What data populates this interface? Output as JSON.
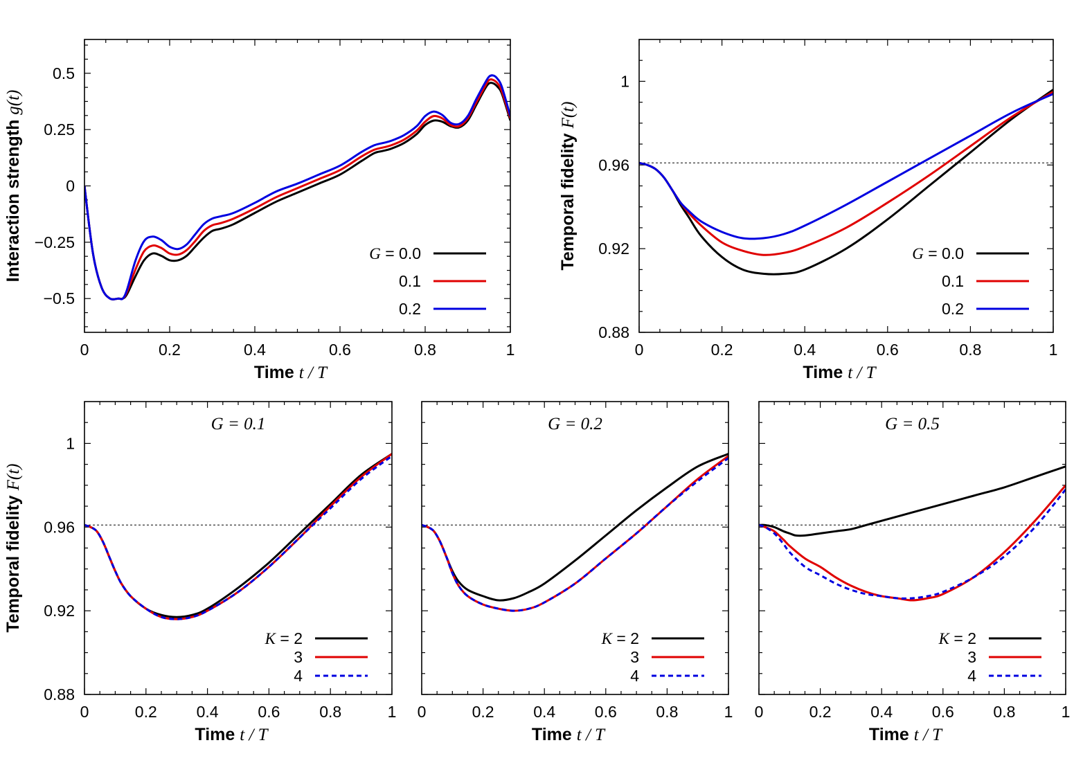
{
  "chart_data": [
    {
      "id": "panel-a",
      "type": "line",
      "xlabel": "Time",
      "xlabel_math": "t / T",
      "ylabel": "Interaction strength",
      "ylabel_math": "g(t)",
      "xlim": [
        0,
        1
      ],
      "ylim": [
        -0.65,
        0.65
      ],
      "xticks": [
        0,
        0.2,
        0.4,
        0.6,
        0.8,
        1
      ],
      "xtick_labels": [
        "0",
        "0.2",
        "0.4",
        "0.6",
        "0.8",
        "1"
      ],
      "yticks": [
        -0.5,
        -0.25,
        0,
        0.25,
        0.5
      ],
      "ytick_labels": [
        "−0.5",
        "−0.25",
        "0",
        "0.25",
        "0.5"
      ],
      "legend_placement": "bottom-right",
      "legend_title_math": "G",
      "series": [
        {
          "name": "0.0",
          "color": "#000000",
          "dash": "solid",
          "x": [
            0,
            0.02,
            0.04,
            0.06,
            0.08,
            0.09,
            0.1,
            0.12,
            0.14,
            0.16,
            0.18,
            0.2,
            0.22,
            0.24,
            0.26,
            0.28,
            0.3,
            0.32,
            0.35,
            0.4,
            0.45,
            0.5,
            0.55,
            0.6,
            0.65,
            0.68,
            0.7,
            0.72,
            0.75,
            0.78,
            0.8,
            0.82,
            0.84,
            0.86,
            0.88,
            0.9,
            0.92,
            0.94,
            0.95,
            0.96,
            0.97,
            0.98,
            1.0
          ],
          "y": [
            0.0,
            -0.3,
            -0.45,
            -0.5,
            -0.5,
            -0.5,
            -0.48,
            -0.4,
            -0.33,
            -0.3,
            -0.31,
            -0.33,
            -0.33,
            -0.31,
            -0.27,
            -0.23,
            -0.2,
            -0.19,
            -0.17,
            -0.12,
            -0.07,
            -0.03,
            0.01,
            0.05,
            0.11,
            0.145,
            0.155,
            0.165,
            0.19,
            0.23,
            0.27,
            0.29,
            0.285,
            0.265,
            0.26,
            0.29,
            0.36,
            0.43,
            0.455,
            0.455,
            0.44,
            0.41,
            0.29
          ]
        },
        {
          "name": "0.1",
          "color": "#e00000",
          "dash": "solid",
          "x": [
            0,
            0.02,
            0.04,
            0.06,
            0.08,
            0.09,
            0.1,
            0.12,
            0.14,
            0.16,
            0.18,
            0.2,
            0.22,
            0.24,
            0.26,
            0.28,
            0.3,
            0.32,
            0.35,
            0.4,
            0.45,
            0.5,
            0.55,
            0.6,
            0.65,
            0.68,
            0.7,
            0.72,
            0.75,
            0.78,
            0.8,
            0.82,
            0.84,
            0.86,
            0.88,
            0.9,
            0.92,
            0.94,
            0.95,
            0.96,
            0.97,
            0.98,
            1.0
          ],
          "y": [
            0.0,
            -0.3,
            -0.45,
            -0.5,
            -0.5,
            -0.5,
            -0.47,
            -0.37,
            -0.29,
            -0.265,
            -0.275,
            -0.3,
            -0.305,
            -0.285,
            -0.245,
            -0.2,
            -0.175,
            -0.165,
            -0.145,
            -0.1,
            -0.05,
            -0.01,
            0.03,
            0.07,
            0.13,
            0.16,
            0.17,
            0.18,
            0.205,
            0.245,
            0.285,
            0.31,
            0.3,
            0.27,
            0.265,
            0.3,
            0.37,
            0.44,
            0.47,
            0.47,
            0.455,
            0.42,
            0.3
          ]
        },
        {
          "name": "0.2",
          "color": "#0000e0",
          "dash": "solid",
          "x": [
            0,
            0.02,
            0.04,
            0.06,
            0.08,
            0.09,
            0.1,
            0.12,
            0.14,
            0.16,
            0.18,
            0.2,
            0.22,
            0.24,
            0.26,
            0.28,
            0.3,
            0.32,
            0.35,
            0.4,
            0.45,
            0.5,
            0.55,
            0.6,
            0.65,
            0.68,
            0.7,
            0.72,
            0.75,
            0.78,
            0.8,
            0.82,
            0.84,
            0.86,
            0.88,
            0.9,
            0.92,
            0.94,
            0.95,
            0.96,
            0.97,
            0.98,
            1.0
          ],
          "y": [
            0.0,
            -0.3,
            -0.45,
            -0.5,
            -0.5,
            -0.5,
            -0.46,
            -0.33,
            -0.245,
            -0.225,
            -0.24,
            -0.27,
            -0.28,
            -0.26,
            -0.215,
            -0.17,
            -0.145,
            -0.135,
            -0.12,
            -0.075,
            -0.025,
            0.01,
            0.05,
            0.09,
            0.15,
            0.18,
            0.19,
            0.2,
            0.225,
            0.265,
            0.31,
            0.33,
            0.315,
            0.28,
            0.275,
            0.31,
            0.385,
            0.455,
            0.485,
            0.49,
            0.475,
            0.44,
            0.31
          ]
        }
      ]
    },
    {
      "id": "panel-b",
      "type": "line",
      "xlabel": "Time",
      "xlabel_math": "t / T",
      "ylabel": "Temporal fidelity",
      "ylabel_math": "F(t)",
      "xlim": [
        0,
        1
      ],
      "ylim": [
        0.88,
        1.02
      ],
      "xticks": [
        0,
        0.2,
        0.4,
        0.6,
        0.8,
        1
      ],
      "xtick_labels": [
        "0",
        "0.2",
        "0.4",
        "0.6",
        "0.8",
        "1"
      ],
      "yticks": [
        0.88,
        0.92,
        0.96,
        1.0
      ],
      "ytick_labels": [
        "0.88",
        "0.92",
        "0.96",
        "1"
      ],
      "reference_line_y": 0.961,
      "legend_placement": "bottom-right",
      "legend_title_math": "G",
      "series": [
        {
          "name": "0.0",
          "color": "#000000",
          "dash": "solid",
          "x": [
            0,
            0.02,
            0.04,
            0.06,
            0.08,
            0.1,
            0.12,
            0.15,
            0.2,
            0.25,
            0.3,
            0.35,
            0.4,
            0.5,
            0.6,
            0.7,
            0.8,
            0.9,
            1.0
          ],
          "y": [
            0.961,
            0.96,
            0.958,
            0.954,
            0.948,
            0.941,
            0.935,
            0.926,
            0.916,
            0.91,
            0.908,
            0.908,
            0.91,
            0.92,
            0.934,
            0.95,
            0.966,
            0.982,
            0.996
          ]
        },
        {
          "name": "0.1",
          "color": "#e00000",
          "dash": "solid",
          "x": [
            0,
            0.02,
            0.04,
            0.06,
            0.08,
            0.1,
            0.12,
            0.15,
            0.2,
            0.25,
            0.3,
            0.35,
            0.4,
            0.5,
            0.6,
            0.7,
            0.8,
            0.9,
            1.0
          ],
          "y": [
            0.961,
            0.96,
            0.958,
            0.954,
            0.948,
            0.942,
            0.937,
            0.931,
            0.923,
            0.919,
            0.917,
            0.918,
            0.921,
            0.93,
            0.942,
            0.955,
            0.969,
            0.983,
            0.995
          ]
        },
        {
          "name": "0.2",
          "color": "#0000e0",
          "dash": "solid",
          "x": [
            0,
            0.02,
            0.04,
            0.06,
            0.08,
            0.1,
            0.12,
            0.15,
            0.2,
            0.25,
            0.3,
            0.35,
            0.4,
            0.5,
            0.6,
            0.7,
            0.8,
            0.9,
            1.0
          ],
          "y": [
            0.961,
            0.96,
            0.958,
            0.954,
            0.948,
            0.942,
            0.938,
            0.933,
            0.928,
            0.925,
            0.925,
            0.927,
            0.931,
            0.941,
            0.952,
            0.963,
            0.974,
            0.985,
            0.994
          ]
        }
      ]
    },
    {
      "id": "panel-c",
      "type": "line",
      "title": "G = 0.1",
      "xlabel": "Time",
      "xlabel_math": "t / T",
      "ylabel": "Temporal fidelity",
      "ylabel_math": "F(t)",
      "xlim": [
        0,
        1
      ],
      "ylim": [
        0.88,
        1.02
      ],
      "xticks": [
        0,
        0.2,
        0.4,
        0.6,
        0.8,
        1
      ],
      "xtick_labels": [
        "0",
        "0.2",
        "0.4",
        "0.6",
        "0.8",
        "1"
      ],
      "yticks": [
        0.88,
        0.92,
        0.96,
        1.0
      ],
      "ytick_labels": [
        "0.88",
        "0.92",
        "0.96",
        "1"
      ],
      "reference_line_y": 0.961,
      "legend_placement": "bottom-right",
      "legend_title_math": "K",
      "series": [
        {
          "name": "2",
          "color": "#000000",
          "dash": "solid",
          "x": [
            0,
            0.02,
            0.04,
            0.06,
            0.08,
            0.1,
            0.12,
            0.15,
            0.2,
            0.25,
            0.3,
            0.35,
            0.4,
            0.5,
            0.6,
            0.7,
            0.8,
            0.9,
            1.0
          ],
          "y": [
            0.961,
            0.96,
            0.958,
            0.953,
            0.946,
            0.939,
            0.933,
            0.927,
            0.921,
            0.918,
            0.917,
            0.918,
            0.921,
            0.931,
            0.943,
            0.957,
            0.971,
            0.985,
            0.995
          ]
        },
        {
          "name": "3",
          "color": "#e00000",
          "dash": "solid",
          "x": [
            0,
            0.02,
            0.04,
            0.06,
            0.08,
            0.1,
            0.12,
            0.15,
            0.2,
            0.25,
            0.3,
            0.35,
            0.4,
            0.5,
            0.6,
            0.7,
            0.8,
            0.9,
            1.0
          ],
          "y": [
            0.961,
            0.96,
            0.958,
            0.953,
            0.946,
            0.939,
            0.933,
            0.927,
            0.921,
            0.917,
            0.916,
            0.917,
            0.92,
            0.929,
            0.941,
            0.955,
            0.97,
            0.984,
            0.995
          ]
        },
        {
          "name": "4",
          "color": "#0000e0",
          "dash": "dashed",
          "x": [
            0,
            0.02,
            0.04,
            0.06,
            0.08,
            0.1,
            0.12,
            0.15,
            0.2,
            0.25,
            0.3,
            0.35,
            0.4,
            0.5,
            0.6,
            0.7,
            0.8,
            0.9,
            1.0
          ],
          "y": [
            0.961,
            0.96,
            0.958,
            0.953,
            0.946,
            0.939,
            0.933,
            0.927,
            0.921,
            0.917,
            0.916,
            0.917,
            0.92,
            0.929,
            0.941,
            0.955,
            0.969,
            0.983,
            0.994
          ]
        }
      ]
    },
    {
      "id": "panel-d",
      "type": "line",
      "title": "G = 0.2",
      "xlabel": "Time",
      "xlabel_math": "t / T",
      "ylabel": "",
      "xlim": [
        0,
        1
      ],
      "ylim": [
        0.88,
        1.02
      ],
      "xticks": [
        0,
        0.2,
        0.4,
        0.6,
        0.8,
        1
      ],
      "xtick_labels": [
        "0",
        "0.2",
        "0.4",
        "0.6",
        "0.8",
        "1"
      ],
      "yticks": [
        0.88,
        0.92,
        0.96,
        1.0
      ],
      "ytick_labels": [],
      "reference_line_y": 0.961,
      "legend_placement": "bottom-right",
      "legend_title_math": "K",
      "series": [
        {
          "name": "2",
          "color": "#000000",
          "dash": "solid",
          "x": [
            0,
            0.02,
            0.04,
            0.06,
            0.08,
            0.1,
            0.12,
            0.15,
            0.2,
            0.25,
            0.3,
            0.35,
            0.4,
            0.5,
            0.6,
            0.7,
            0.8,
            0.9,
            1.0
          ],
          "y": [
            0.961,
            0.96,
            0.958,
            0.953,
            0.946,
            0.939,
            0.934,
            0.93,
            0.927,
            0.925,
            0.926,
            0.929,
            0.933,
            0.944,
            0.956,
            0.968,
            0.979,
            0.989,
            0.995
          ]
        },
        {
          "name": "3",
          "color": "#e00000",
          "dash": "solid",
          "x": [
            0,
            0.02,
            0.04,
            0.06,
            0.08,
            0.1,
            0.12,
            0.15,
            0.2,
            0.25,
            0.3,
            0.35,
            0.4,
            0.5,
            0.6,
            0.7,
            0.8,
            0.9,
            1.0
          ],
          "y": [
            0.961,
            0.96,
            0.958,
            0.953,
            0.946,
            0.938,
            0.932,
            0.927,
            0.923,
            0.921,
            0.92,
            0.921,
            0.924,
            0.933,
            0.945,
            0.957,
            0.97,
            0.983,
            0.994
          ]
        },
        {
          "name": "4",
          "color": "#0000e0",
          "dash": "dashed",
          "x": [
            0,
            0.02,
            0.04,
            0.06,
            0.08,
            0.1,
            0.12,
            0.15,
            0.2,
            0.25,
            0.3,
            0.35,
            0.4,
            0.5,
            0.6,
            0.7,
            0.8,
            0.9,
            1.0
          ],
          "y": [
            0.961,
            0.96,
            0.958,
            0.953,
            0.946,
            0.938,
            0.932,
            0.927,
            0.923,
            0.921,
            0.92,
            0.921,
            0.924,
            0.933,
            0.945,
            0.957,
            0.97,
            0.982,
            0.993
          ]
        }
      ]
    },
    {
      "id": "panel-e",
      "type": "line",
      "title": "G = 0.5",
      "xlabel": "Time",
      "xlabel_math": "t / T",
      "ylabel": "",
      "xlim": [
        0,
        1
      ],
      "ylim": [
        0.88,
        1.02
      ],
      "xticks": [
        0,
        0.2,
        0.4,
        0.6,
        0.8,
        1
      ],
      "xtick_labels": [
        "0",
        "0.2",
        "0.4",
        "0.6",
        "0.8",
        "1"
      ],
      "yticks": [
        0.88,
        0.92,
        0.96,
        1.0
      ],
      "ytick_labels": [],
      "reference_line_y": 0.961,
      "legend_placement": "bottom-right",
      "legend_title_math": "K",
      "series": [
        {
          "name": "2",
          "color": "#000000",
          "dash": "solid",
          "x": [
            0,
            0.02,
            0.05,
            0.08,
            0.1,
            0.12,
            0.15,
            0.2,
            0.25,
            0.3,
            0.35,
            0.4,
            0.5,
            0.6,
            0.7,
            0.8,
            0.9,
            1.0
          ],
          "y": [
            0.961,
            0.961,
            0.96,
            0.958,
            0.957,
            0.956,
            0.956,
            0.957,
            0.958,
            0.959,
            0.961,
            0.963,
            0.967,
            0.971,
            0.975,
            0.979,
            0.984,
            0.989
          ]
        },
        {
          "name": "3",
          "color": "#e00000",
          "dash": "solid",
          "x": [
            0,
            0.02,
            0.05,
            0.08,
            0.1,
            0.15,
            0.2,
            0.25,
            0.3,
            0.35,
            0.4,
            0.45,
            0.5,
            0.55,
            0.6,
            0.7,
            0.8,
            0.9,
            1.0
          ],
          "y": [
            0.961,
            0.96,
            0.958,
            0.954,
            0.951,
            0.945,
            0.941,
            0.936,
            0.932,
            0.929,
            0.927,
            0.926,
            0.925,
            0.926,
            0.928,
            0.936,
            0.948,
            0.963,
            0.98
          ]
        },
        {
          "name": "4",
          "color": "#0000e0",
          "dash": "dashed",
          "x": [
            0,
            0.02,
            0.05,
            0.08,
            0.1,
            0.15,
            0.2,
            0.25,
            0.3,
            0.35,
            0.4,
            0.45,
            0.5,
            0.55,
            0.6,
            0.7,
            0.8,
            0.9,
            1.0
          ],
          "y": [
            0.961,
            0.96,
            0.957,
            0.952,
            0.948,
            0.941,
            0.937,
            0.933,
            0.93,
            0.928,
            0.927,
            0.926,
            0.926,
            0.927,
            0.929,
            0.936,
            0.946,
            0.96,
            0.978
          ]
        }
      ]
    }
  ]
}
